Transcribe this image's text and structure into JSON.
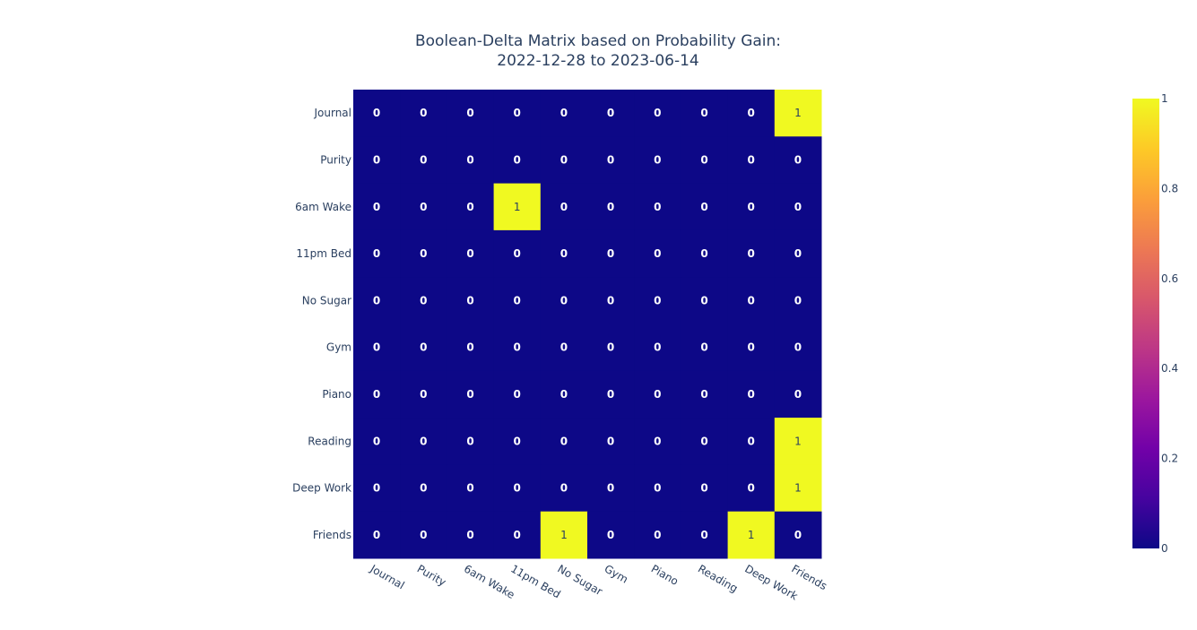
{
  "chart_data": {
    "type": "heatmap",
    "title_lines": [
      "Boolean-Delta Matrix based on Probability Gain:",
      "2022-12-28 to 2023-06-14"
    ],
    "x_categories": [
      "Journal",
      "Purity",
      "6am Wake",
      "11pm Bed",
      "No Sugar",
      "Gym",
      "Piano",
      "Reading",
      "Deep Work",
      "Friends"
    ],
    "y_categories": [
      "Journal",
      "Purity",
      "6am Wake",
      "11pm Bed",
      "No Sugar",
      "Gym",
      "Piano",
      "Reading",
      "Deep Work",
      "Friends"
    ],
    "z": [
      [
        0,
        0,
        0,
        0,
        0,
        0,
        0,
        0,
        0,
        1
      ],
      [
        0,
        0,
        0,
        0,
        0,
        0,
        0,
        0,
        0,
        0
      ],
      [
        0,
        0,
        0,
        1,
        0,
        0,
        0,
        0,
        0,
        0
      ],
      [
        0,
        0,
        0,
        0,
        0,
        0,
        0,
        0,
        0,
        0
      ],
      [
        0,
        0,
        0,
        0,
        0,
        0,
        0,
        0,
        0,
        0
      ],
      [
        0,
        0,
        0,
        0,
        0,
        0,
        0,
        0,
        0,
        0
      ],
      [
        0,
        0,
        0,
        0,
        0,
        0,
        0,
        0,
        0,
        0
      ],
      [
        0,
        0,
        0,
        0,
        0,
        0,
        0,
        0,
        0,
        1
      ],
      [
        0,
        0,
        0,
        0,
        0,
        0,
        0,
        0,
        0,
        1
      ],
      [
        0,
        0,
        0,
        0,
        1,
        0,
        0,
        0,
        1,
        0
      ]
    ],
    "colorscale": [
      "#0d0887",
      "#46039f",
      "#7201a8",
      "#9c179e",
      "#bd3786",
      "#d8576b",
      "#ed7953",
      "#fb9f3a",
      "#fdca26",
      "#f0f921"
    ],
    "zmin": 0,
    "zmax": 1,
    "colorbar_ticks": [
      "0",
      "0.2",
      "0.4",
      "0.6",
      "0.8",
      "1"
    ],
    "colorbar_tick_values": [
      0,
      0.2,
      0.4,
      0.6,
      0.8,
      1
    ]
  }
}
